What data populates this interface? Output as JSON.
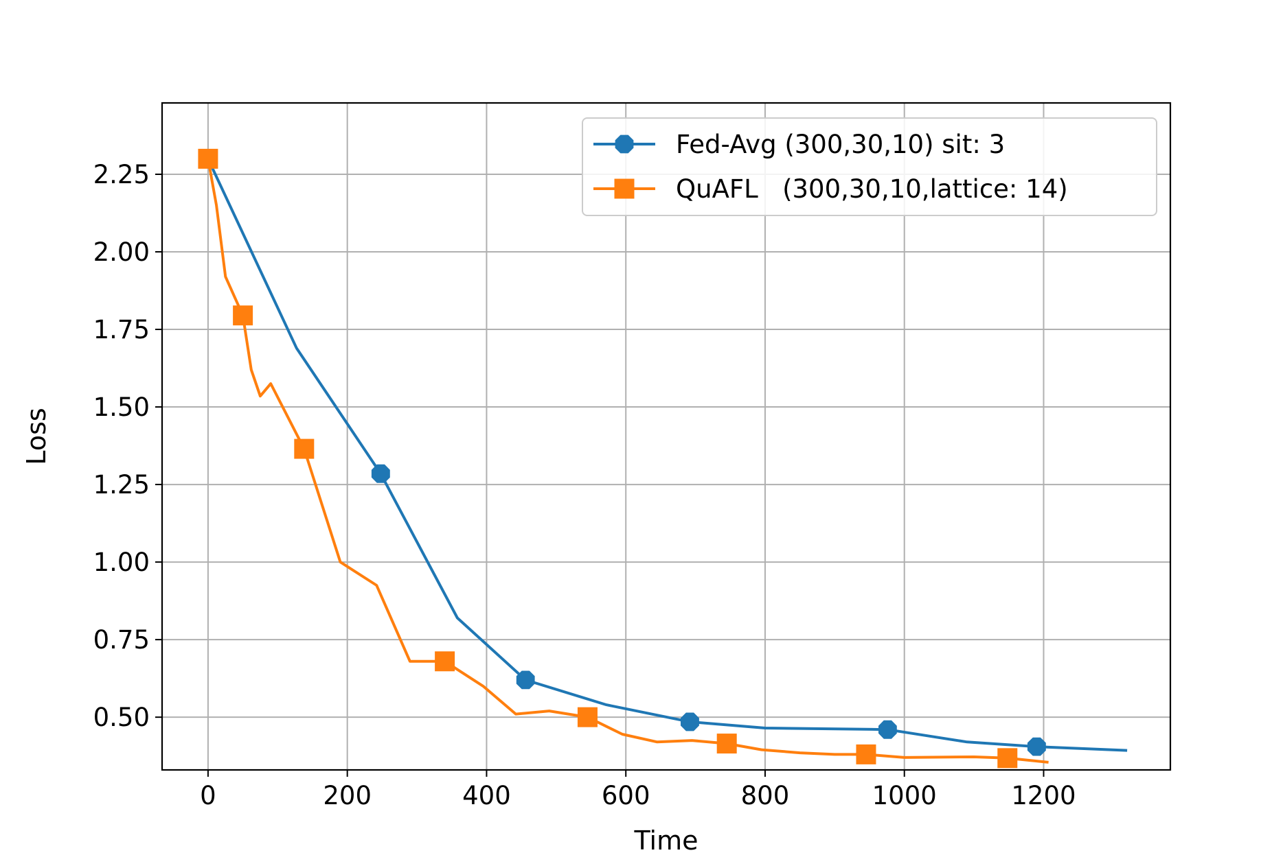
{
  "chart_data": {
    "type": "line",
    "title": "",
    "xlabel": "Time",
    "ylabel": "Loss",
    "xlim": [
      -66,
      1382
    ],
    "ylim": [
      0.33,
      2.48
    ],
    "xticks": [
      0,
      200,
      400,
      600,
      800,
      1000,
      1200
    ],
    "xtick_labels": [
      "0",
      "200",
      "400",
      "600",
      "800",
      "1000",
      "1200"
    ],
    "yticks": [
      0.5,
      0.75,
      1.0,
      1.25,
      1.5,
      1.75,
      2.0,
      2.25
    ],
    "ytick_labels": [
      "0.50",
      "0.75",
      "1.00",
      "1.25",
      "1.50",
      "1.75",
      "2.00",
      "2.25"
    ],
    "grid": true,
    "legend_position": "top-right",
    "series": [
      {
        "name": "Fed-Avg (300,30,10) sit: 3",
        "color": "#1f77b4",
        "marker": "octagon",
        "x": [
          0,
          127,
          248,
          358,
          456,
          572,
          692,
          800,
          976,
          1090,
          1190,
          1318
        ],
        "y": [
          2.3,
          1.69,
          1.285,
          0.82,
          0.62,
          0.54,
          0.485,
          0.465,
          0.46,
          0.42,
          0.405,
          0.393
        ],
        "marker_x": [
          248,
          456,
          692,
          976,
          1190
        ],
        "marker_y": [
          1.285,
          0.62,
          0.485,
          0.46,
          0.405
        ]
      },
      {
        "name": "QuAFL   (300,30,10,lattice: 14)",
        "color": "#ff7f0e",
        "marker": "square",
        "x": [
          0,
          12,
          25,
          50,
          62,
          75,
          90,
          138,
          190,
          242,
          290,
          340,
          395,
          442,
          490,
          545,
          595,
          645,
          695,
          745,
          795,
          850,
          900,
          945,
          1000,
          1100,
          1148,
          1205
        ],
        "y": [
          2.3,
          2.15,
          1.92,
          1.795,
          1.62,
          1.535,
          1.575,
          1.365,
          1.0,
          0.925,
          0.68,
          0.68,
          0.6,
          0.51,
          0.52,
          0.5,
          0.445,
          0.42,
          0.425,
          0.415,
          0.395,
          0.385,
          0.38,
          0.38,
          0.37,
          0.372,
          0.368,
          0.355
        ],
        "marker_x": [
          0,
          50,
          138,
          340,
          545,
          745,
          945,
          1148
        ],
        "marker_y": [
          2.3,
          1.795,
          1.365,
          0.68,
          0.5,
          0.415,
          0.38,
          0.368
        ]
      }
    ]
  }
}
